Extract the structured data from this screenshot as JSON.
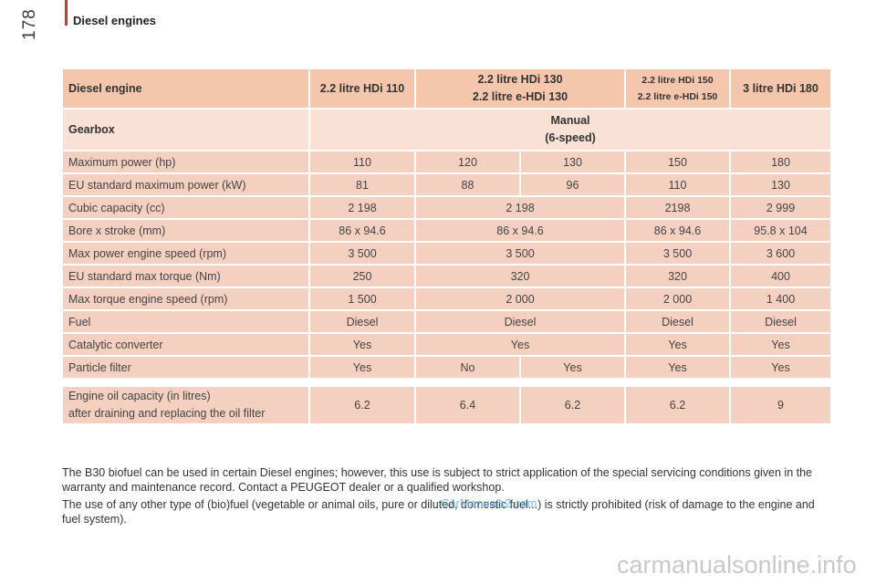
{
  "header": {
    "section_title": "Diesel engines",
    "page_number": "178"
  },
  "table": {
    "columns": [
      "Diesel engine",
      "2.2 litre HDi 110",
      "2.2 litre HDi 130",
      "2.2 litre e-HDi 130",
      "2.2 litre HDi 150",
      "2.2 litre e-HDi 150",
      "3 litre HDi 180"
    ],
    "gearbox": {
      "label": "Gearbox",
      "line1": "Manual",
      "line2": "(6-speed)"
    },
    "rows": [
      {
        "label": "Maximum power (hp)",
        "cells": [
          "110",
          "120",
          "130",
          "150",
          "180"
        ]
      },
      {
        "label": "EU standard maximum power (kW)",
        "cells": [
          "81",
          "88",
          "96",
          "110",
          "130"
        ]
      },
      {
        "label": "Cubic capacity (cc)",
        "cells": [
          "2 198",
          "2 198",
          "2198",
          "2 999"
        ]
      },
      {
        "label": "Bore x stroke (mm)",
        "cells": [
          "86 x 94.6",
          "86 x 94.6",
          "86 x 94.6",
          "95.8 x 104"
        ]
      },
      {
        "label": "Max power engine speed (rpm)",
        "cells": [
          "3 500",
          "3 500",
          "3 500",
          "3 600"
        ]
      },
      {
        "label": "EU standard max torque (Nm)",
        "cells": [
          "250",
          "320",
          "320",
          "400"
        ]
      },
      {
        "label": "Max torque engine speed (rpm)",
        "cells": [
          "1 500",
          "2 000",
          "2 000",
          "1 400"
        ]
      },
      {
        "label": "Fuel",
        "cells": [
          "Diesel",
          "Diesel",
          "Diesel",
          "Diesel"
        ]
      },
      {
        "label": "Catalytic converter",
        "cells": [
          "Yes",
          "Yes",
          "Yes",
          "Yes"
        ]
      },
      {
        "label": "Particle filter",
        "cells": [
          "Yes",
          "No",
          "Yes",
          "Yes",
          "Yes"
        ]
      }
    ],
    "oil": {
      "label_line1": "Engine oil capacity (in litres)",
      "label_line2": "after draining and replacing the oil filter",
      "cells": [
        "6.2",
        "6.4",
        "6.2",
        "6.2",
        "9"
      ]
    }
  },
  "notes": [
    "The B30 biofuel can be used in certain Diesel engines; however, this use is subject to strict application of the special servicing conditions given in the warranty and maintenance record. Contact a PEUGEOT dealer or a qualified workshop.",
    "The use of any other type of (bio)fuel (vegetable or animal oils, pure or diluted, domestic fuel...) is strictly prohibited (risk of damage to the engine and fuel system)."
  ],
  "watermark": "CarManuals2.com",
  "footer": "carmanualsonline.info"
}
